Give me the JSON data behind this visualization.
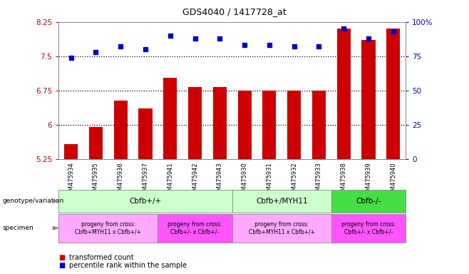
{
  "title": "GDS4040 / 1417728_at",
  "samples": [
    "GSM475934",
    "GSM475935",
    "GSM475936",
    "GSM475937",
    "GSM475941",
    "GSM475942",
    "GSM475943",
    "GSM475930",
    "GSM475931",
    "GSM475932",
    "GSM475933",
    "GSM475938",
    "GSM475939",
    "GSM475940"
  ],
  "transformed_count": [
    5.58,
    5.95,
    6.52,
    6.35,
    7.02,
    6.82,
    6.82,
    6.75,
    6.75,
    6.75,
    6.75,
    8.1,
    7.85,
    8.1
  ],
  "percentile_rank": [
    74,
    78,
    82,
    80,
    90,
    88,
    88,
    83,
    83,
    82,
    82,
    95,
    88,
    93
  ],
  "ylim_left": [
    5.25,
    8.25
  ],
  "ylim_right": [
    0,
    100
  ],
  "yticks_left": [
    5.25,
    6.0,
    6.75,
    7.5,
    8.25
  ],
  "yticks_right": [
    0,
    25,
    50,
    75,
    100
  ],
  "ytick_labels_left": [
    "5.25",
    "6",
    "6.75",
    "7.5",
    "8.25"
  ],
  "ytick_labels_right": [
    "0",
    "25",
    "50",
    "75",
    "100%"
  ],
  "hlines": [
    6.0,
    6.75,
    7.5
  ],
  "bar_color": "#cc0000",
  "dot_color": "#0000cc",
  "genotype_groups": [
    {
      "label": "Cbfb+/+",
      "start": 0,
      "end": 6,
      "color": "#ccffcc"
    },
    {
      "label": "Cbfb+/MYH11",
      "start": 7,
      "end": 10,
      "color": "#ccffcc"
    },
    {
      "label": "Cbfb-/-",
      "start": 11,
      "end": 13,
      "color": "#44dd44"
    }
  ],
  "specimen_groups": [
    {
      "label": "progeny from cross:\nCbfb+MYH11 x Cbfb+/+",
      "start": 0,
      "end": 3,
      "color": "#ffaaff"
    },
    {
      "label": "progeny from cross:\nCbfb+/- x Cbfb+/-",
      "start": 4,
      "end": 6,
      "color": "#ff55ff"
    },
    {
      "label": "progeny from cross:\nCbfb+MYH11 x Cbfb+/+",
      "start": 7,
      "end": 10,
      "color": "#ffaaff"
    },
    {
      "label": "progeny from cross:\nCbfb+/- x Cbfb+/-",
      "start": 11,
      "end": 13,
      "color": "#ff55ff"
    }
  ],
  "genotype_label": "genotype/variation",
  "specimen_label": "specimen",
  "legend_bar": "transformed count",
  "legend_dot": "percentile rank within the sample"
}
